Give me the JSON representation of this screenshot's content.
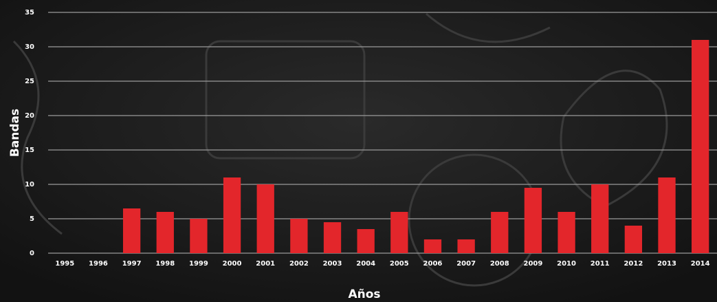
{
  "chart_data": {
    "type": "bar",
    "categories": [
      "1995",
      "1996",
      "1997",
      "1998",
      "1999",
      "2000",
      "2001",
      "2002",
      "2003",
      "2004",
      "2005",
      "2006",
      "2007",
      "2008",
      "2009",
      "2010",
      "2011",
      "2012",
      "2013",
      "2014"
    ],
    "values": [
      0,
      0,
      6.5,
      6,
      5,
      11,
      10,
      5,
      4.5,
      3.5,
      6,
      2,
      2,
      6,
      9.5,
      6,
      10,
      4,
      11,
      31
    ],
    "color": "#e3262b",
    "x_label": "Años",
    "y_label": "Bandas",
    "ylim": [
      0,
      35
    ],
    "yticks": [
      0,
      5,
      10,
      15,
      20,
      25,
      30,
      35
    ],
    "grid": true
  }
}
